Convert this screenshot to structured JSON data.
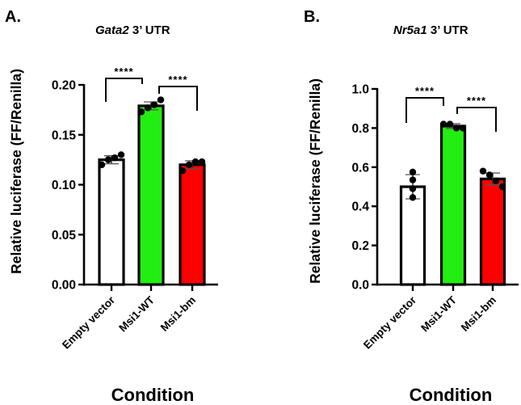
{
  "chart_data": [
    {
      "type": "bar",
      "panel_label": "A.",
      "title_italic": "Gata2",
      "title_rest": " 3’ UTR",
      "xlabel": "Condition",
      "ylabel": "Relative luciferase (FF/Renilla)",
      "ylim": [
        0,
        0.2
      ],
      "yticks": [
        0.0,
        0.05,
        0.1,
        0.15,
        0.2
      ],
      "ytick_labels": [
        "0.00",
        "0.05",
        "0.10",
        "0.15",
        "0.20"
      ],
      "categories": [
        "Empty vector",
        "Msi1-WT",
        "Msi1-bm"
      ],
      "bar_colors": [
        "#ffffff",
        "#22ee11",
        "#ff0000"
      ],
      "values": [
        0.125,
        0.179,
        0.12
      ],
      "sd": [
        0.004,
        0.004,
        0.004
      ],
      "points": [
        [
          0.12,
          0.125,
          0.127,
          0.13
        ],
        [
          0.173,
          0.177,
          0.18,
          0.185
        ],
        [
          0.114,
          0.12,
          0.123,
          0.123
        ]
      ],
      "significance": [
        {
          "from": 0,
          "to": 1,
          "label": "****"
        },
        {
          "from": 1,
          "to": 2,
          "label": "****"
        }
      ]
    },
    {
      "type": "bar",
      "panel_label": "B.",
      "title_italic": "Nr5a1",
      "title_rest": " 3’ UTR",
      "xlabel": "Condition",
      "ylabel": "Relative luciferase (FF/Renilla)",
      "ylim": [
        0,
        1.0
      ],
      "yticks": [
        0.0,
        0.2,
        0.4,
        0.6,
        0.8,
        1.0
      ],
      "ytick_labels": [
        "0.0",
        "0.2",
        "0.4",
        "0.6",
        "0.8",
        "1.0"
      ],
      "categories": [
        "Empty vector",
        "Msi1-WT",
        "Msi1-bm"
      ],
      "bar_colors": [
        "#ffffff",
        "#22ee11",
        "#ff0000"
      ],
      "values": [
        0.5,
        0.81,
        0.54
      ],
      "sd": [
        0.062,
        0.012,
        0.03
      ],
      "points": [
        [
          0.575,
          0.535,
          0.49,
          0.445
        ],
        [
          0.82,
          0.82,
          0.8,
          0.8
        ],
        [
          0.58,
          0.56,
          0.53,
          0.5
        ]
      ],
      "significance": [
        {
          "from": 0,
          "to": 1,
          "label": "****"
        },
        {
          "from": 1,
          "to": 2,
          "label": "****"
        }
      ]
    }
  ]
}
